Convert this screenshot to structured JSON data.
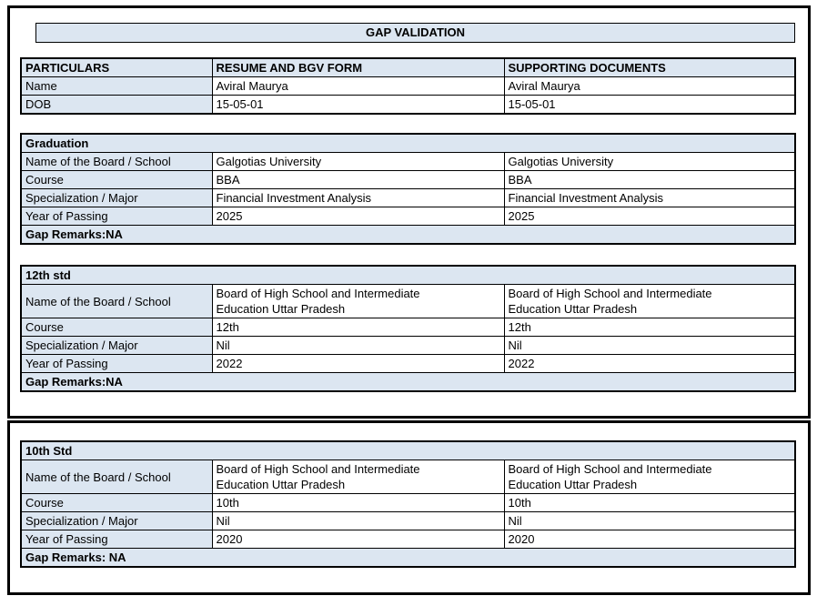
{
  "title": "GAP VALIDATION",
  "colors": {
    "header_fill": "#dce6f1",
    "border": "#000000",
    "page_bg": "#ffffff"
  },
  "particulars_table": {
    "headers": [
      "PARTICULARS",
      "RESUME AND BGV FORM",
      "SUPPORTING DOCUMENTS"
    ],
    "rows": [
      {
        "label": "Name",
        "resume": "Aviral Maurya",
        "supporting": "Aviral Maurya"
      },
      {
        "label": "DOB",
        "resume": "15-05-01",
        "supporting": "15-05-01"
      }
    ]
  },
  "sections": [
    {
      "name": "Graduation",
      "rows": [
        {
          "label": "Name of the Board / School",
          "resume": "Galgotias University",
          "supporting": "Galgotias University"
        },
        {
          "label": "Course",
          "resume": "BBA",
          "supporting": "BBA"
        },
        {
          "label": "Specialization / Major",
          "resume": "Financial Investment Analysis",
          "supporting": "Financial Investment Analysis"
        },
        {
          "label": "Year of Passing",
          "resume": "2025",
          "supporting": "2025"
        }
      ],
      "gap_remarks": "Gap Remarks:NA"
    },
    {
      "name": "12th std",
      "rows": [
        {
          "label": "Name of the Board / School",
          "resume": "Board of High School and Intermediate\nEducation Uttar Pradesh",
          "supporting": "Board of High School and Intermediate\nEducation Uttar Pradesh"
        },
        {
          "label": "Course",
          "resume": "12th",
          "supporting": "12th"
        },
        {
          "label": "Specialization / Major",
          "resume": "Nil",
          "supporting": "Nil"
        },
        {
          "label": "Year of Passing",
          "resume": "2022",
          "supporting": "2022"
        }
      ],
      "gap_remarks": "Gap Remarks:NA"
    },
    {
      "name": "10th Std",
      "rows": [
        {
          "label": "Name of the Board / School",
          "resume": "Board of High School and Intermediate\nEducation Uttar Pradesh",
          "supporting": "Board of High School and Intermediate\nEducation Uttar Pradesh"
        },
        {
          "label": "Course",
          "resume": "10th",
          "supporting": "10th"
        },
        {
          "label": "Specialization / Major",
          "resume": "Nil",
          "supporting": "Nil"
        },
        {
          "label": "Year of Passing",
          "resume": "2020",
          "supporting": "2020"
        }
      ],
      "gap_remarks": "Gap Remarks: NA"
    }
  ]
}
